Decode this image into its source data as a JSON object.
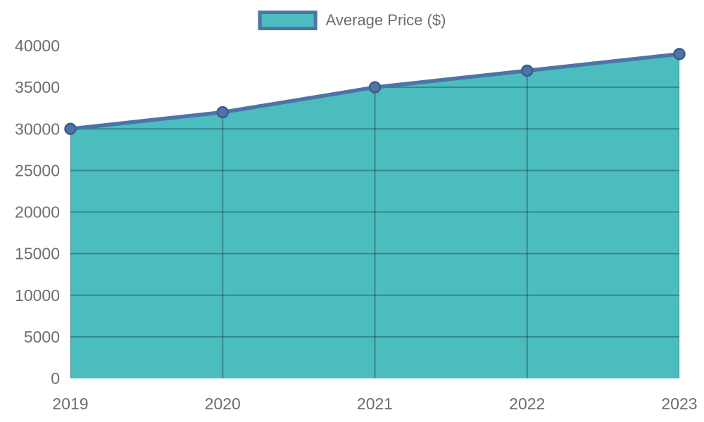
{
  "legend": {
    "label": "Average Price ($)",
    "position": "top-center"
  },
  "colors": {
    "area_fill": "#4BBDBE",
    "line": "#4C74A8",
    "marker_fill": "#4C74A8",
    "marker_stroke": "#3C5C8C",
    "grid_on_fill": "rgba(0,0,0,0.28)",
    "tick_text": "#6E6E6E",
    "background": "#ffffff"
  },
  "chart_data": {
    "type": "area",
    "title": "",
    "xlabel": "",
    "ylabel": "",
    "x": [
      "2019",
      "2020",
      "2021",
      "2022",
      "2023"
    ],
    "series": [
      {
        "name": "Average Price ($)",
        "values": [
          30000,
          32000,
          35000,
          37000,
          39000
        ]
      }
    ],
    "ylim": [
      0,
      40000
    ],
    "yticks": [
      0,
      5000,
      10000,
      15000,
      20000,
      25000,
      30000,
      35000,
      40000
    ],
    "ytick_labels": [
      "0",
      "5000",
      "10000",
      "15000",
      "20000",
      "25000",
      "30000",
      "35000",
      "40000"
    ],
    "grid": true,
    "grid_clipped_to_area": true,
    "markers": true,
    "legend_position": "top"
  }
}
